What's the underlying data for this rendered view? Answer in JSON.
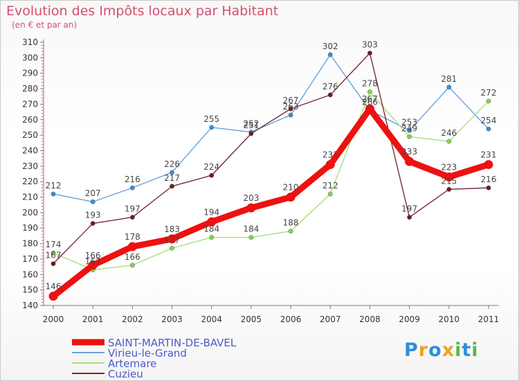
{
  "title": "Evolution des Impôts locaux par Habitant",
  "subtitle": "(en € et par an)",
  "brand": "Proxiti",
  "chart_data": {
    "type": "line",
    "title": "Evolution des Impôts locaux par Habitant",
    "subtitle": "(en € et par an)",
    "xlabel": "",
    "ylabel": "",
    "categories": [
      "2000",
      "2001",
      "2002",
      "2003",
      "2004",
      "2005",
      "2006",
      "2007",
      "2008",
      "2009",
      "2010",
      "2011"
    ],
    "ylim": [
      140,
      310
    ],
    "yticks": [
      140,
      150,
      160,
      170,
      180,
      190,
      200,
      210,
      220,
      230,
      240,
      250,
      260,
      270,
      280,
      290,
      300,
      310
    ],
    "grid": false,
    "series": [
      {
        "name": "SAINT-MARTIN-DE-BAVEL",
        "color": "#ee1111",
        "values": [
          146,
          166,
          178,
          183,
          194,
          203,
          210,
          231,
          267,
          233,
          223,
          231
        ]
      },
      {
        "name": "Virieu-le-Grand",
        "color": "#6aa0d8",
        "marker": "#3a8ed0",
        "values": [
          212,
          207,
          216,
          226,
          255,
          252,
          263,
          302,
          266,
          253,
          281,
          254
        ]
      },
      {
        "name": "Artemare",
        "color": "#a6e07a",
        "marker": "#84d14a",
        "values": [
          174,
          163,
          166,
          177,
          184,
          184,
          188,
          212,
          278,
          249,
          246,
          272
        ]
      },
      {
        "name": "Cuzieu",
        "color": "#7a2a34",
        "marker": "#6a1c24",
        "values": [
          167,
          193,
          197,
          217,
          224,
          251,
          267,
          276,
          303,
          197,
          215,
          216
        ]
      }
    ]
  }
}
